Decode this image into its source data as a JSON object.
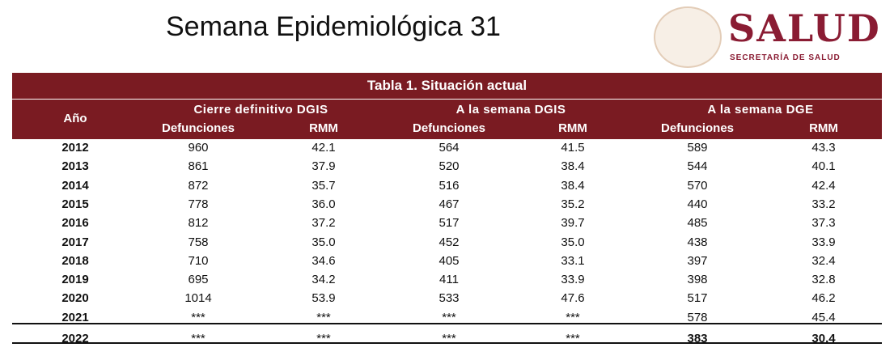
{
  "header": {
    "title": "Semana Epidemiológica 31",
    "logo_text": "SALUD",
    "logo_subtitle": "SECRETARÍA DE SALUD"
  },
  "table": {
    "title": "Tabla 1. Situación actual",
    "year_header": "Año",
    "groups": [
      "Cierre definitivo DGIS",
      "A la semana DGIS",
      "A la semana DGE"
    ],
    "subheaders": [
      "Defunciones",
      "RMM",
      "Defunciones",
      "RMM",
      "Defunciones",
      "RMM"
    ],
    "rows": [
      [
        "2012",
        "960",
        "42.1",
        "564",
        "41.5",
        "589",
        "43.3"
      ],
      [
        "2013",
        "861",
        "37.9",
        "520",
        "38.4",
        "544",
        "40.1"
      ],
      [
        "2014",
        "872",
        "35.7",
        "516",
        "38.4",
        "570",
        "42.4"
      ],
      [
        "2015",
        "778",
        "36.0",
        "467",
        "35.2",
        "440",
        "33.2"
      ],
      [
        "2016",
        "812",
        "37.2",
        "517",
        "39.7",
        "485",
        "37.3"
      ],
      [
        "2017",
        "758",
        "35.0",
        "452",
        "35.0",
        "438",
        "33.9"
      ],
      [
        "2018",
        "710",
        "34.6",
        "405",
        "33.1",
        "397",
        "32.4"
      ],
      [
        "2019",
        "695",
        "34.2",
        "411",
        "33.9",
        "398",
        "32.8"
      ],
      [
        "2020",
        "1014",
        "53.9",
        "533",
        "47.6",
        "517",
        "46.2"
      ],
      [
        "2021",
        "***",
        "***",
        "***",
        "***",
        "578",
        "45.4"
      ],
      [
        "2022",
        "***",
        "***",
        "***",
        "***",
        "383",
        "30.4"
      ]
    ]
  }
}
